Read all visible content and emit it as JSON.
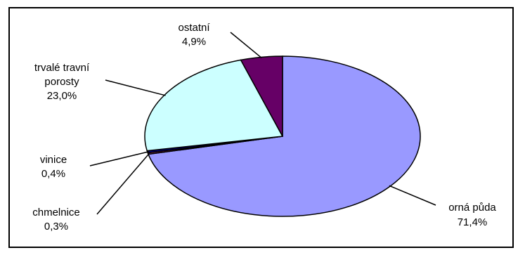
{
  "chart_data": {
    "type": "pie",
    "title": "",
    "slices": [
      {
        "name": "orná půda",
        "value": 71.4,
        "label": "71,4%",
        "color": "#9999ff"
      },
      {
        "name": "chmelnice",
        "value": 0.3,
        "label": "0,3%",
        "color": "#993366"
      },
      {
        "name": "vinice",
        "value": 0.4,
        "label": "0,4%",
        "color": "#000080"
      },
      {
        "name_lines": [
          "trvalé travní",
          "porosty"
        ],
        "value": 23.0,
        "label": "23,0%",
        "color": "#ccffff"
      },
      {
        "name": "ostatní",
        "value": 4.9,
        "label": "4,9%",
        "color": "#660066"
      }
    ],
    "start_angle_deg": 0,
    "direction": "clockwise",
    "legend": "none",
    "label_style": "leader-lines"
  }
}
